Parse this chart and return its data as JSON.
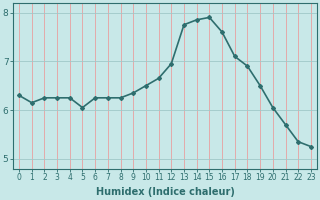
{
  "x": [
    0,
    1,
    2,
    3,
    4,
    5,
    6,
    7,
    8,
    9,
    10,
    11,
    12,
    13,
    14,
    15,
    16,
    17,
    18,
    19,
    20,
    21,
    22,
    23
  ],
  "y": [
    6.3,
    6.15,
    6.25,
    6.25,
    6.25,
    6.05,
    6.25,
    6.25,
    6.25,
    6.35,
    6.5,
    6.65,
    6.95,
    7.75,
    7.85,
    7.9,
    7.6,
    7.1,
    6.9,
    6.5,
    6.05,
    5.7,
    5.35,
    5.25
  ],
  "line_color": "#2e6e6e",
  "marker": "D",
  "marker_size": 2,
  "bg_color": "#c8e8e8",
  "vgrid_color": "#e8a0a0",
  "hgrid_color": "#a0c8c8",
  "xlabel": "Humidex (Indice chaleur)",
  "ylim": [
    4.8,
    8.2
  ],
  "xlim": [
    -0.5,
    23.5
  ],
  "yticks": [
    5,
    6,
    7,
    8
  ],
  "xticks": [
    0,
    1,
    2,
    3,
    4,
    5,
    6,
    7,
    8,
    9,
    10,
    11,
    12,
    13,
    14,
    15,
    16,
    17,
    18,
    19,
    20,
    21,
    22,
    23
  ],
  "xlabel_color": "#2e6e6e",
  "tick_color": "#2e6e6e",
  "spine_color": "#2e6e6e",
  "linewidth": 1.2,
  "tick_fontsize": 5.5,
  "ylabel_fontsize": 6.5,
  "xlabel_fontsize": 7
}
